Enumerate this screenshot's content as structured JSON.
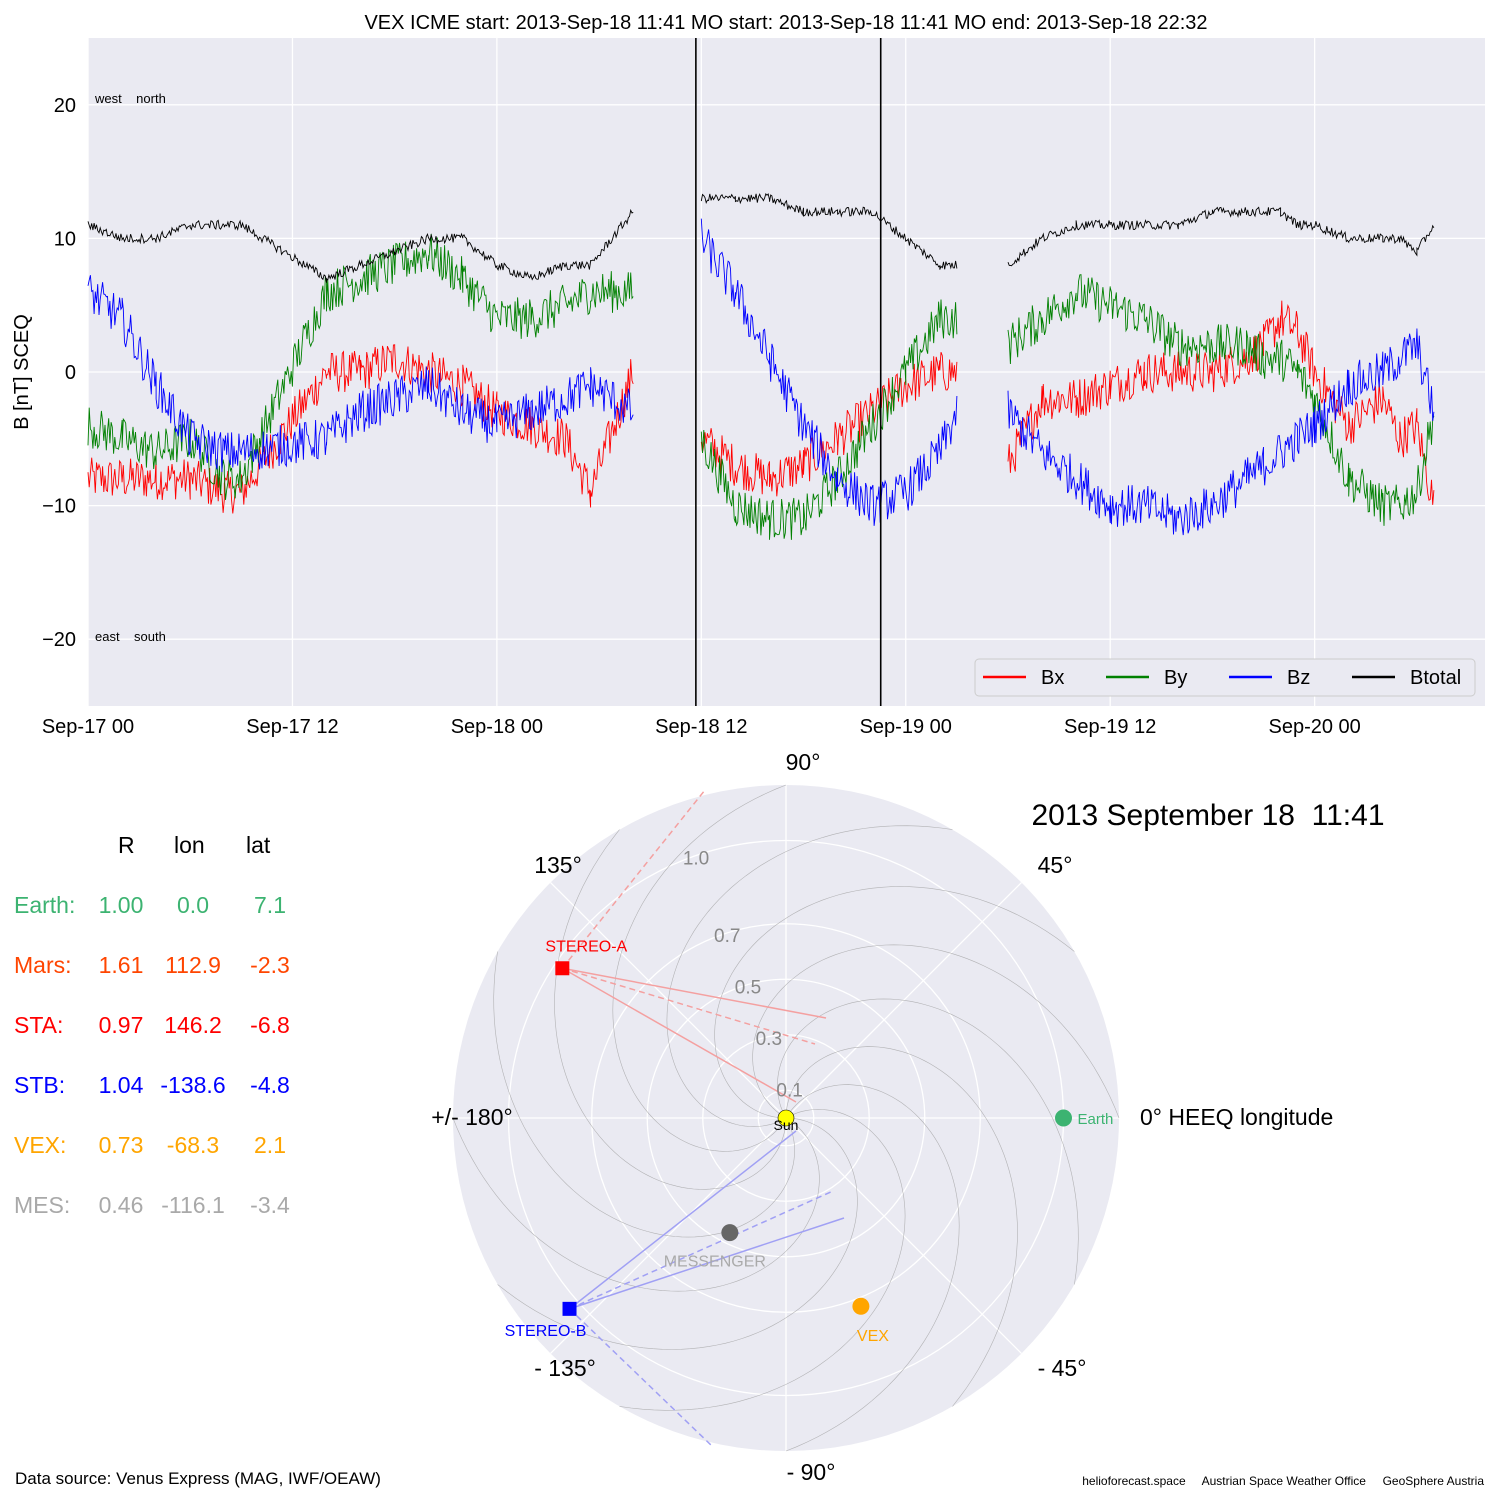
{
  "chart_data": [
    {
      "type": "line",
      "title": "VEX    ICME start: 2013-Sep-18 11:41   MO start: 2013-Sep-18 11:41   MO end: 2013-Sep-18 22:32",
      "ylabel": "B [nT] SCEQ",
      "ylim": [
        -25,
        25
      ],
      "yticks": [
        20,
        10,
        0,
        -10,
        -20
      ],
      "ytick_labels": [
        "20",
        "10",
        "0",
        "−10",
        "−20"
      ],
      "xlim_hours": [
        0,
        82
      ],
      "xticks": [
        0,
        12,
        24,
        36,
        48,
        60,
        72
      ],
      "xtick_labels": [
        "Sep-17 00",
        "Sep-17 12",
        "Sep-18 00",
        "Sep-18 12",
        "Sep-19 00",
        "Sep-19 12",
        "Sep-20 00"
      ],
      "grid": true,
      "legend": "bottom-right",
      "annotations": {
        "top": "west    north",
        "bottom": "east    south"
      },
      "vlines": [
        {
          "label": "ICME start / MO start",
          "x": "2013-Sep-18 11:41",
          "hour": 35.68
        },
        {
          "label": "MO end",
          "x": "2013-Sep-18 22:32",
          "hour": 46.53
        }
      ],
      "series": [
        {
          "name": "Bx",
          "color": "#ff0000",
          "x": [
            0,
            2,
            4,
            6,
            8,
            9,
            14,
            16,
            18,
            22,
            24,
            28,
            29.5,
            32,
            33.5,
            36,
            38,
            40,
            42,
            44,
            46,
            48,
            50,
            51,
            52,
            54,
            56,
            57,
            58,
            60,
            62,
            64,
            66,
            68,
            69,
            70,
            71,
            72,
            74,
            76,
            77,
            78,
            79
          ],
          "y": [
            -8,
            -8,
            -8,
            -8,
            -9,
            -9,
            0,
            0,
            1,
            -1,
            -3,
            -5,
            -9,
            0,
            null,
            -5,
            -7,
            -8,
            -7,
            -5,
            -3,
            -1,
            0,
            0,
            null,
            -7,
            -2,
            -2,
            -2,
            -1,
            0,
            0,
            0,
            1,
            2,
            4,
            3,
            0,
            -4,
            -2,
            -5,
            -4,
            -10
          ]
        },
        {
          "name": "By",
          "color": "#008000",
          "x": [
            0,
            2,
            4,
            6,
            8,
            9,
            14,
            16,
            18,
            20,
            22,
            24,
            26,
            28,
            29.5,
            32,
            33.5,
            36,
            38,
            40,
            42,
            44,
            46,
            48,
            50,
            51,
            52,
            54,
            56,
            58,
            60,
            62,
            64,
            66,
            68,
            69,
            70,
            71,
            72,
            74,
            76,
            77,
            78,
            79
          ],
          "y": [
            -4,
            -5,
            -6,
            -5,
            -8,
            -8,
            6,
            7,
            8,
            9,
            7,
            4,
            4,
            5,
            6,
            6,
            null,
            -5,
            -10,
            -11,
            -11,
            -8,
            -4,
            0,
            4,
            4,
            null,
            2,
            4,
            6,
            5,
            4,
            2,
            2,
            2,
            1,
            1,
            0,
            -2,
            -8,
            -10,
            -10,
            -9,
            -3
          ]
        },
        {
          "name": "Bz",
          "color": "#0000ff",
          "x": [
            0,
            2,
            4,
            6,
            8,
            9,
            14,
            16,
            18,
            20,
            22,
            24,
            26,
            28,
            29.5,
            32,
            33.5,
            36,
            38,
            40,
            42,
            44,
            46,
            48,
            50,
            51,
            52,
            54,
            56,
            58,
            60,
            62,
            64,
            66,
            68,
            69,
            70,
            71,
            72,
            74,
            76,
            77,
            78,
            79
          ],
          "y": [
            6,
            4,
            -1,
            -5,
            -6,
            -6,
            -5,
            -3,
            -2,
            -1,
            -3,
            -4,
            -3,
            -2,
            -1,
            -3,
            null,
            10,
            6,
            1,
            -4,
            -8,
            -10,
            -9,
            -6,
            -3,
            null,
            -3,
            -6,
            -8,
            -10,
            -10,
            -11,
            -10,
            -8,
            -7,
            -6,
            -5,
            -4,
            -1,
            0,
            1,
            2,
            -3
          ]
        },
        {
          "name": "Btotal",
          "color": "#000000",
          "x": [
            0,
            2,
            4,
            6,
            8,
            9,
            14,
            16,
            18,
            20,
            22,
            24,
            26,
            28,
            29.5,
            32,
            33.5,
            36,
            38,
            40,
            42,
            44,
            46,
            48,
            50,
            51,
            52,
            54,
            56,
            58,
            60,
            62,
            64,
            66,
            68,
            69,
            70,
            71,
            72,
            74,
            76,
            77,
            78,
            79
          ],
          "y": [
            11,
            10,
            10,
            11,
            11,
            11,
            7,
            8,
            9,
            10,
            10,
            8,
            7,
            8,
            8,
            12,
            null,
            13,
            13,
            13,
            12,
            12,
            12,
            10,
            8,
            8,
            null,
            8,
            10,
            11,
            11,
            11,
            11,
            12,
            12,
            12,
            12,
            11,
            11,
            10,
            10,
            10,
            9,
            11
          ]
        }
      ]
    },
    {
      "type": "scatter",
      "title": "2013 September 18  11:41",
      "coordinate_system": "polar",
      "r_ticks": [
        "0.1",
        "0.3",
        "0.5",
        "0.7",
        "1.0"
      ],
      "r_tick_values": [
        0.1,
        0.3,
        0.5,
        0.7,
        1.0
      ],
      "angle_labels": [
        "0° HEEQ longitude",
        "45°",
        "90°",
        "135°",
        "+/- 180°",
        "- 135°",
        "- 90°",
        "- 45°"
      ],
      "grid": true,
      "points": [
        {
          "name": "Sun",
          "r": 0.0,
          "lon": 0.0,
          "color": "#ffff00"
        },
        {
          "name": "Earth",
          "r": 1.0,
          "lon": 0.0,
          "color": "#3cb371"
        },
        {
          "name": "STEREO-A",
          "r": 0.97,
          "lon": 146.2,
          "color": "#ff0000"
        },
        {
          "name": "STEREO-B",
          "r": 1.04,
          "lon": -138.6,
          "color": "#0000ff"
        },
        {
          "name": "VEX",
          "r": 0.73,
          "lon": -68.3,
          "color": "#ffa500"
        },
        {
          "name": "MESSENGER",
          "r": 0.46,
          "lon": -116.1,
          "color": "#666666"
        }
      ]
    }
  ],
  "table": {
    "headers": [
      "R",
      "lon",
      "lat"
    ],
    "rows": [
      {
        "name": "Earth:",
        "R": "1.00",
        "lon": "0.0",
        "lat": "7.1",
        "color": "#3cb371"
      },
      {
        "name": "Mars:",
        "R": "1.61",
        "lon": "112.9",
        "lat": "-2.3",
        "color": "#ff4500"
      },
      {
        "name": "STA:",
        "R": "0.97",
        "lon": "146.2",
        "lat": "-6.8",
        "color": "#ff0000"
      },
      {
        "name": "STB:",
        "R": "1.04",
        "lon": "-138.6",
        "lat": "-4.8",
        "color": "#0000ff"
      },
      {
        "name": "VEX:",
        "R": "0.73",
        "lon": "-68.3",
        "lat": "2.1",
        "color": "#ffa500"
      },
      {
        "name": "MES:",
        "R": "0.46",
        "lon": "-116.1",
        "lat": "-3.4",
        "color": "#a9a9a9"
      }
    ]
  },
  "footer": {
    "source": "Data source: Venus Express (MAG, IWF/OEAW)",
    "credits": "helioforecast.space     Austrian Space Weather Office     GeoSphere Austria"
  }
}
